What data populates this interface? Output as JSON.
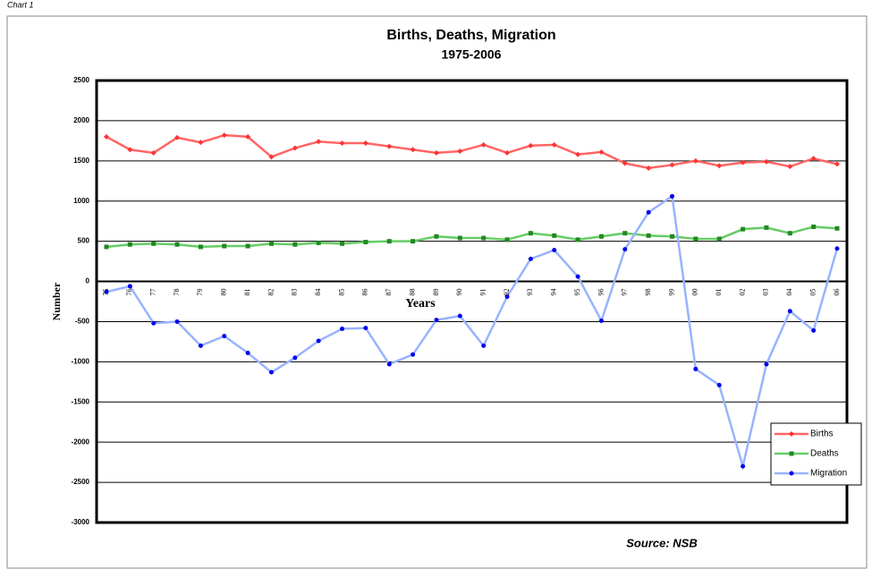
{
  "page_label": "Chart 1",
  "chart_data": {
    "type": "line",
    "title": "Births, Deaths, Migration",
    "subtitle": "1975-2006",
    "xlabel": "Years",
    "ylabel": "Number",
    "source": "Source: NSB",
    "categories": [
      "75",
      "76",
      "77",
      "78",
      "79",
      "80",
      "81",
      "82",
      "83",
      "84",
      "85",
      "86",
      "87",
      "88",
      "89",
      "90",
      "91",
      "92",
      "93",
      "94",
      "95",
      "96",
      "97",
      "98",
      "99",
      "00",
      "01",
      "02",
      "03",
      "04",
      "05",
      "06"
    ],
    "series": [
      {
        "name": "Births",
        "color": "#ff6666",
        "marker_color": "#ff3333",
        "marker": "diamond",
        "values": [
          1800,
          1640,
          1600,
          1790,
          1730,
          1820,
          1800,
          1550,
          1660,
          1740,
          1720,
          1720,
          1680,
          1640,
          1600,
          1620,
          1700,
          1600,
          1690,
          1700,
          1580,
          1610,
          1470,
          1410,
          1450,
          1500,
          1440,
          1480,
          1490,
          1430,
          1530,
          1460
        ]
      },
      {
        "name": "Deaths",
        "color": "#66cc66",
        "marker_color": "#228822",
        "marker": "square",
        "values": [
          430,
          460,
          470,
          460,
          430,
          440,
          440,
          470,
          460,
          480,
          470,
          490,
          500,
          500,
          560,
          540,
          540,
          520,
          600,
          570,
          520,
          560,
          600,
          570,
          560,
          530,
          530,
          650,
          670,
          600,
          680,
          660
        ]
      },
      {
        "name": "Migration",
        "color": "#99b3ff",
        "marker_color": "#0000ee",
        "marker": "circle",
        "values": [
          -130,
          -60,
          -520,
          -500,
          -800,
          -680,
          -890,
          -1130,
          -950,
          -740,
          -590,
          -580,
          -1030,
          -910,
          -480,
          -430,
          -800,
          -190,
          280,
          390,
          60,
          -490,
          400,
          860,
          1060,
          -1090,
          -1290,
          -2300,
          -1030,
          -370,
          -610,
          410
        ]
      }
    ],
    "ylim": [
      -3000,
      2500
    ],
    "yticks": [
      -3000,
      -2500,
      -2000,
      -1500,
      -1000,
      -500,
      0,
      500,
      1000,
      1500,
      2000,
      2500
    ],
    "grid": true,
    "legend": "right"
  }
}
